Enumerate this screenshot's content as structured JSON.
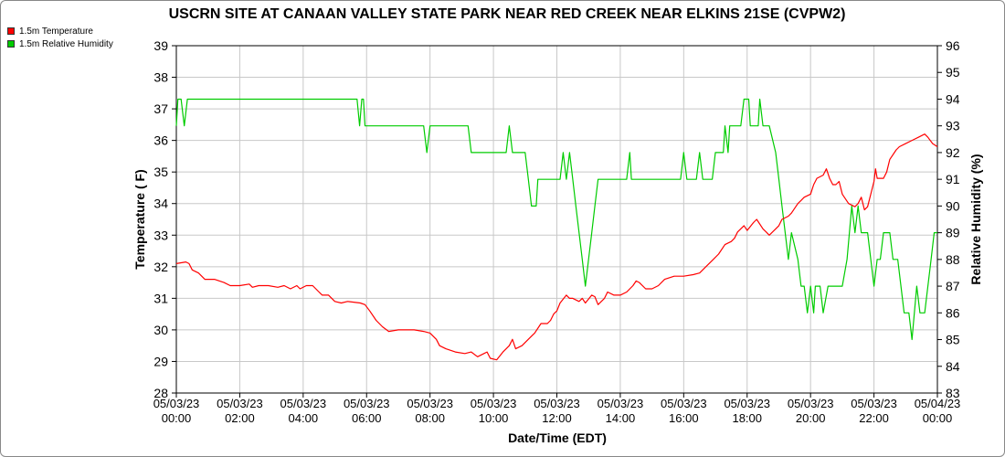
{
  "chart_data": {
    "type": "line",
    "title": "USCRN SITE AT CANAAN VALLEY STATE PARK NEAR RED CREEK NEAR ELKINS 21SE (CVPW2)",
    "xlabel": "Date/Time (EDT)",
    "ylabel_left": "Temperature ( F)",
    "ylabel_right": "Relative Humidity (%)",
    "x_ticks": [
      {
        "hour": 0,
        "date": "05/03/23",
        "time": "00:00"
      },
      {
        "hour": 2,
        "date": "05/03/23",
        "time": "02:00"
      },
      {
        "hour": 4,
        "date": "05/03/23",
        "time": "04:00"
      },
      {
        "hour": 6,
        "date": "05/03/23",
        "time": "06:00"
      },
      {
        "hour": 8,
        "date": "05/03/23",
        "time": "08:00"
      },
      {
        "hour": 10,
        "date": "05/03/23",
        "time": "10:00"
      },
      {
        "hour": 12,
        "date": "05/03/23",
        "time": "12:00"
      },
      {
        "hour": 14,
        "date": "05/03/23",
        "time": "14:00"
      },
      {
        "hour": 16,
        "date": "05/03/23",
        "time": "16:00"
      },
      {
        "hour": 18,
        "date": "05/03/23",
        "time": "18:00"
      },
      {
        "hour": 20,
        "date": "05/03/23",
        "time": "20:00"
      },
      {
        "hour": 22,
        "date": "05/03/23",
        "time": "22:00"
      },
      {
        "hour": 24,
        "date": "05/04/23",
        "time": "00:00"
      }
    ],
    "xlim": [
      0,
      24
    ],
    "ylim_left": [
      28,
      39
    ],
    "yticks_left": [
      "28",
      "29",
      "30",
      "31",
      "32",
      "33",
      "34",
      "35",
      "36",
      "37",
      "38",
      "39"
    ],
    "ylim_right": [
      83,
      96
    ],
    "yticks_right": [
      "83",
      "84",
      "85",
      "86",
      "87",
      "88",
      "89",
      "90",
      "91",
      "92",
      "93",
      "94",
      "95",
      "96"
    ],
    "grid": true,
    "legend_position": "top-left",
    "series": [
      {
        "name": "1.5m Temperature",
        "axis": "left",
        "color": "#ff0000",
        "points": [
          [
            0,
            32.1
          ],
          [
            0.3,
            32.15
          ],
          [
            0.4,
            32.1
          ],
          [
            0.5,
            31.9
          ],
          [
            0.7,
            31.8
          ],
          [
            0.9,
            31.6
          ],
          [
            1.2,
            31.6
          ],
          [
            1.5,
            31.5
          ],
          [
            1.7,
            31.4
          ],
          [
            2,
            31.4
          ],
          [
            2.3,
            31.45
          ],
          [
            2.4,
            31.35
          ],
          [
            2.6,
            31.4
          ],
          [
            2.9,
            31.4
          ],
          [
            3.2,
            31.35
          ],
          [
            3.4,
            31.4
          ],
          [
            3.6,
            31.3
          ],
          [
            3.8,
            31.4
          ],
          [
            3.9,
            31.3
          ],
          [
            4.1,
            31.4
          ],
          [
            4.3,
            31.4
          ],
          [
            4.5,
            31.2
          ],
          [
            4.6,
            31.1
          ],
          [
            4.8,
            31.1
          ],
          [
            5,
            30.9
          ],
          [
            5.2,
            30.85
          ],
          [
            5.4,
            30.9
          ],
          [
            5.8,
            30.85
          ],
          [
            5.95,
            30.8
          ],
          [
            6.1,
            30.6
          ],
          [
            6.3,
            30.3
          ],
          [
            6.5,
            30.1
          ],
          [
            6.7,
            29.95
          ],
          [
            7,
            30
          ],
          [
            7.5,
            30
          ],
          [
            7.8,
            29.95
          ],
          [
            8,
            29.9
          ],
          [
            8.2,
            29.7
          ],
          [
            8.3,
            29.5
          ],
          [
            8.5,
            29.4
          ],
          [
            8.8,
            29.3
          ],
          [
            9.1,
            29.25
          ],
          [
            9.3,
            29.3
          ],
          [
            9.5,
            29.15
          ],
          [
            9.7,
            29.25
          ],
          [
            9.8,
            29.3
          ],
          [
            9.9,
            29.1
          ],
          [
            10.1,
            29.05
          ],
          [
            10.3,
            29.3
          ],
          [
            10.5,
            29.5
          ],
          [
            10.6,
            29.7
          ],
          [
            10.7,
            29.4
          ],
          [
            10.9,
            29.5
          ],
          [
            11,
            29.6
          ],
          [
            11.2,
            29.8
          ],
          [
            11.3,
            29.9
          ],
          [
            11.5,
            30.2
          ],
          [
            11.7,
            30.2
          ],
          [
            11.8,
            30.3
          ],
          [
            11.9,
            30.5
          ],
          [
            12,
            30.6
          ],
          [
            12.1,
            30.85
          ],
          [
            12.3,
            31.1
          ],
          [
            12.4,
            31
          ],
          [
            12.5,
            31
          ],
          [
            12.7,
            30.9
          ],
          [
            12.8,
            31
          ],
          [
            12.9,
            30.85
          ],
          [
            13.1,
            31.1
          ],
          [
            13.2,
            31.05
          ],
          [
            13.3,
            30.8
          ],
          [
            13.5,
            31
          ],
          [
            13.6,
            31.2
          ],
          [
            13.8,
            31.1
          ],
          [
            14,
            31.1
          ],
          [
            14.2,
            31.2
          ],
          [
            14.4,
            31.4
          ],
          [
            14.5,
            31.55
          ],
          [
            14.6,
            31.5
          ],
          [
            14.8,
            31.3
          ],
          [
            15,
            31.3
          ],
          [
            15.2,
            31.4
          ],
          [
            15.4,
            31.6
          ],
          [
            15.7,
            31.7
          ],
          [
            16,
            31.7
          ],
          [
            16.3,
            31.75
          ],
          [
            16.5,
            31.8
          ],
          [
            16.7,
            32
          ],
          [
            16.9,
            32.2
          ],
          [
            17.1,
            32.4
          ],
          [
            17.3,
            32.7
          ],
          [
            17.5,
            32.8
          ],
          [
            17.6,
            32.9
          ],
          [
            17.7,
            33.1
          ],
          [
            17.9,
            33.3
          ],
          [
            18,
            33.15
          ],
          [
            18.2,
            33.4
          ],
          [
            18.3,
            33.5
          ],
          [
            18.5,
            33.2
          ],
          [
            18.6,
            33.1
          ],
          [
            18.7,
            33
          ],
          [
            18.9,
            33.2
          ],
          [
            19,
            33.3
          ],
          [
            19.1,
            33.5
          ],
          [
            19.3,
            33.6
          ],
          [
            19.4,
            33.7
          ],
          [
            19.6,
            34
          ],
          [
            19.7,
            34.1
          ],
          [
            19.8,
            34.2
          ],
          [
            20,
            34.3
          ],
          [
            20.1,
            34.6
          ],
          [
            20.2,
            34.8
          ],
          [
            20.4,
            34.9
          ],
          [
            20.5,
            35.1
          ],
          [
            20.6,
            34.8
          ],
          [
            20.7,
            34.6
          ],
          [
            20.8,
            34.6
          ],
          [
            20.9,
            34.7
          ],
          [
            21,
            34.3
          ],
          [
            21.2,
            34
          ],
          [
            21.4,
            33.9
          ],
          [
            21.5,
            34
          ],
          [
            21.6,
            34.2
          ],
          [
            21.7,
            33.8
          ],
          [
            21.8,
            33.9
          ],
          [
            21.9,
            34.3
          ],
          [
            22,
            34.7
          ],
          [
            22.05,
            35.1
          ],
          [
            22.1,
            34.8
          ],
          [
            22.3,
            34.8
          ],
          [
            22.4,
            35.0
          ],
          [
            22.5,
            35.4
          ],
          [
            22.7,
            35.7
          ],
          [
            22.8,
            35.8
          ],
          [
            23,
            35.9
          ],
          [
            23.2,
            36
          ],
          [
            23.4,
            36.1
          ],
          [
            23.6,
            36.2
          ],
          [
            23.7,
            36.1
          ],
          [
            23.85,
            35.9
          ],
          [
            24,
            35.8
          ]
        ]
      },
      {
        "name": "1.5m Relative Humidity",
        "axis": "right",
        "color": "#00cc00",
        "points": [
          [
            0,
            93
          ],
          [
            0.05,
            94
          ],
          [
            0.15,
            94
          ],
          [
            0.25,
            93
          ],
          [
            0.35,
            94
          ],
          [
            5.7,
            94
          ],
          [
            5.78,
            93
          ],
          [
            5.85,
            94
          ],
          [
            5.9,
            94
          ],
          [
            5.95,
            93
          ],
          [
            7.8,
            93
          ],
          [
            7.9,
            92
          ],
          [
            8,
            93
          ],
          [
            9.2,
            93
          ],
          [
            9.3,
            92
          ],
          [
            10.4,
            92
          ],
          [
            10.5,
            93
          ],
          [
            10.6,
            92
          ],
          [
            11,
            92
          ],
          [
            11.1,
            91
          ],
          [
            11.2,
            90
          ],
          [
            11.35,
            90
          ],
          [
            11.4,
            91
          ],
          [
            12.1,
            91
          ],
          [
            12.2,
            92
          ],
          [
            12.3,
            91
          ],
          [
            12.4,
            92
          ],
          [
            12.5,
            91
          ],
          [
            12.6,
            90
          ],
          [
            12.7,
            89
          ],
          [
            12.8,
            88
          ],
          [
            12.9,
            87
          ],
          [
            13,
            88
          ],
          [
            13.1,
            89
          ],
          [
            13.2,
            90
          ],
          [
            13.3,
            91
          ],
          [
            14.2,
            91
          ],
          [
            14.3,
            92
          ],
          [
            14.35,
            91
          ],
          [
            15.9,
            91
          ],
          [
            16,
            92
          ],
          [
            16.1,
            91
          ],
          [
            16.4,
            91
          ],
          [
            16.5,
            92
          ],
          [
            16.6,
            91
          ],
          [
            16.9,
            91
          ],
          [
            17,
            92
          ],
          [
            17.25,
            92
          ],
          [
            17.3,
            93
          ],
          [
            17.4,
            92
          ],
          [
            17.45,
            93
          ],
          [
            17.6,
            93
          ],
          [
            17.8,
            93
          ],
          [
            17.9,
            94
          ],
          [
            18.05,
            94
          ],
          [
            18.1,
            93
          ],
          [
            18.35,
            93
          ],
          [
            18.4,
            94
          ],
          [
            18.5,
            93
          ],
          [
            18.7,
            93
          ],
          [
            18.9,
            92
          ],
          [
            19.0,
            91
          ],
          [
            19.1,
            90
          ],
          [
            19.2,
            89
          ],
          [
            19.3,
            88
          ],
          [
            19.4,
            89
          ],
          [
            19.6,
            88
          ],
          [
            19.7,
            87
          ],
          [
            19.8,
            87
          ],
          [
            19.9,
            86
          ],
          [
            20,
            87
          ],
          [
            20.1,
            86
          ],
          [
            20.15,
            87
          ],
          [
            20.3,
            87
          ],
          [
            20.4,
            86
          ],
          [
            20.55,
            87
          ],
          [
            20.7,
            87
          ],
          [
            20.8,
            87
          ],
          [
            21,
            87
          ],
          [
            21.15,
            88
          ],
          [
            21.3,
            90
          ],
          [
            21.4,
            89
          ],
          [
            21.5,
            90
          ],
          [
            21.6,
            89
          ],
          [
            21.8,
            89
          ],
          [
            21.9,
            88
          ],
          [
            22,
            87
          ],
          [
            22.1,
            88
          ],
          [
            22.2,
            88
          ],
          [
            22.3,
            89
          ],
          [
            22.5,
            89
          ],
          [
            22.6,
            88
          ],
          [
            22.75,
            88
          ],
          [
            22.85,
            87
          ],
          [
            22.95,
            86
          ],
          [
            23.1,
            86
          ],
          [
            23.2,
            85
          ],
          [
            23.35,
            87
          ],
          [
            23.45,
            86
          ],
          [
            23.6,
            86
          ],
          [
            23.7,
            87
          ],
          [
            23.8,
            88
          ],
          [
            23.9,
            89
          ],
          [
            24,
            89
          ]
        ]
      }
    ]
  }
}
